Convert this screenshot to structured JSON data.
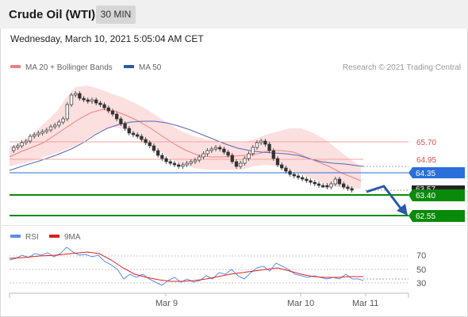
{
  "header": {
    "instrument": "Crude Oil (WTI)",
    "timeframe": "30 MIN"
  },
  "timestamp": "Wednesday, March 10, 2021 5:05:04 AM CET",
  "legend": {
    "ma20_label": "MA 20 + Bollinger Bands",
    "ma50_label": "MA 50",
    "ma20_color": "#f08080",
    "ma50_color": "#2a5aa8"
  },
  "credit": "Research © 2021 Trading Central",
  "levels": {
    "r2": {
      "label": "65.70",
      "color": "#e8706e"
    },
    "r1": {
      "label": "64.95",
      "color": "#e8706e"
    },
    "pivot": {
      "label": "64.35",
      "color": "#2a6fdb"
    },
    "s1": {
      "label": "63.40",
      "color": "#0a8a0a"
    },
    "s2": {
      "label": "62.55",
      "color": "#0a8a0a"
    },
    "last_price_partial": "63.57"
  },
  "rsi": {
    "rsi_label": "RSI",
    "ma_label": "9MA",
    "rsi_color": "#5b8def",
    "ma_color": "#e02020",
    "ticks": [
      "70",
      "50",
      "30"
    ]
  },
  "x_axis": {
    "labels": [
      "Mar 9",
      "Mar 10",
      "Mar 11"
    ]
  }
}
